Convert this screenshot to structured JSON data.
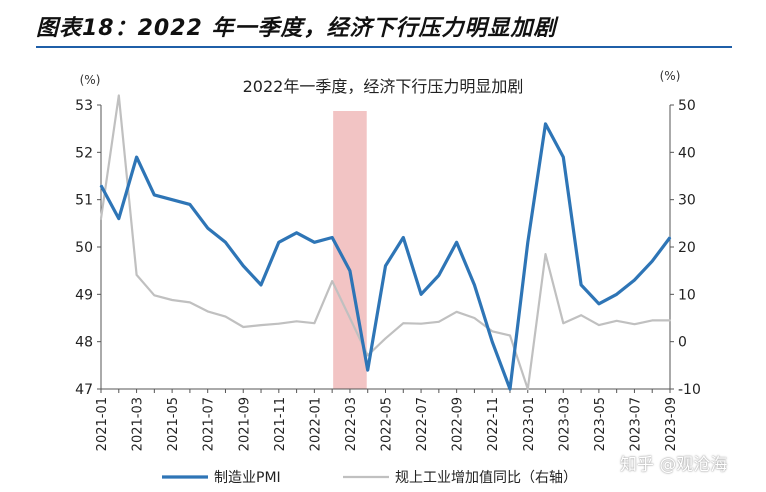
{
  "figure_title": "图表18：2022 年一季度，经济下行压力明显加剧",
  "watermark": "知乎 @观沧海",
  "colors": {
    "pmi": "#2e75b6",
    "industry": "#c0c0c0",
    "shade": "#f2c4c4",
    "rule": "#1f5fa8"
  },
  "chart_data": {
    "type": "line",
    "title": "2022年一季度，经济下行压力明显加剧",
    "left_unit": "(%)",
    "right_unit": "(%)",
    "x": [
      "2021-01",
      "2021-02",
      "2021-03",
      "2021-04",
      "2021-05",
      "2021-06",
      "2021-07",
      "2021-08",
      "2021-09",
      "2021-10",
      "2021-11",
      "2021-12",
      "2022-01",
      "2022-02",
      "2022-03",
      "2022-04",
      "2022-05",
      "2022-06",
      "2022-07",
      "2022-08",
      "2022-09",
      "2022-10",
      "2022-11",
      "2022-12",
      "2023-01",
      "2023-02",
      "2023-03",
      "2023-04",
      "2023-05",
      "2023-06",
      "2023-07",
      "2023-08",
      "2023-09"
    ],
    "xticks": [
      "2021-01",
      "2021-03",
      "2021-05",
      "2021-07",
      "2021-09",
      "2021-11",
      "2022-01",
      "2022-03",
      "2022-05",
      "2022-07",
      "2022-09",
      "2022-11",
      "2023-01",
      "2023-03",
      "2023-05",
      "2023-07",
      "2023-09"
    ],
    "ylim_left": [
      47,
      53
    ],
    "yticks_left": [
      "47",
      "48",
      "49",
      "50",
      "51",
      "52",
      "53"
    ],
    "ylim_right": [
      -10,
      50
    ],
    "yticks_right": [
      "-10",
      "0",
      "10",
      "20",
      "30",
      "40",
      "50"
    ],
    "shaded_range": [
      "2022-02",
      "2022-04"
    ],
    "legend_position": "bottom",
    "series": [
      {
        "name": "制造业PMI",
        "axis": "left",
        "values": [
          51.3,
          50.6,
          51.9,
          51.1,
          51.0,
          50.9,
          50.4,
          50.1,
          49.6,
          49.2,
          50.1,
          50.3,
          50.1,
          50.2,
          49.5,
          47.4,
          49.6,
          50.2,
          49.0,
          49.4,
          50.1,
          49.2,
          48.0,
          47.0,
          50.1,
          52.6,
          51.9,
          49.2,
          48.8,
          49.0,
          49.3,
          49.7,
          50.2
        ]
      },
      {
        "name": "规上工业增加值同比（右轴）",
        "axis": "right",
        "values": [
          26.0,
          52.0,
          14.1,
          9.8,
          8.8,
          8.3,
          6.4,
          5.3,
          3.1,
          3.5,
          3.8,
          4.3,
          3.9,
          12.8,
          5.0,
          -2.9,
          0.7,
          3.9,
          3.8,
          4.2,
          6.3,
          5.0,
          2.2,
          1.3,
          -10.0,
          18.5,
          3.9,
          5.6,
          3.5,
          4.4,
          3.7,
          4.5,
          4.5
        ]
      }
    ]
  }
}
